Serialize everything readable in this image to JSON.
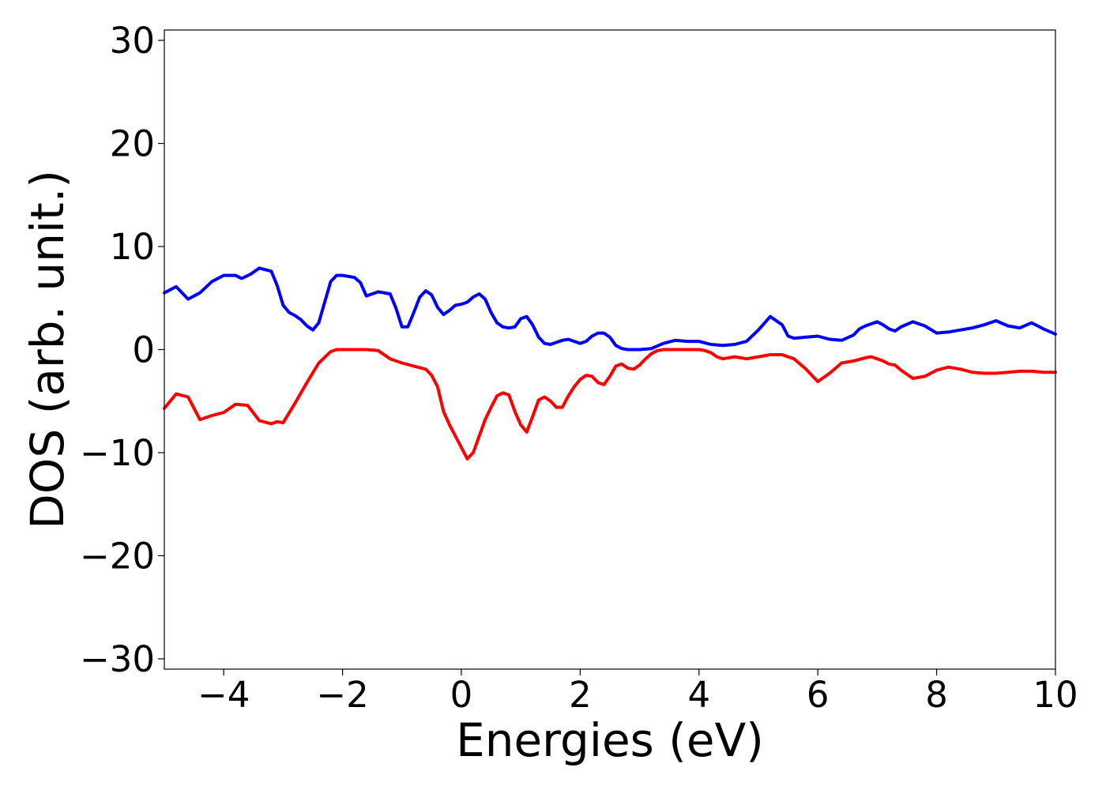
{
  "chart_data": {
    "type": "line",
    "title": "",
    "xlabel": "Energies (eV)",
    "ylabel": "DOS (arb. unit.)",
    "xlim": [
      -5,
      10
    ],
    "ylim": [
      -31,
      31
    ],
    "xticks": [
      -4,
      -2,
      0,
      2,
      4,
      6,
      8,
      10
    ],
    "yticks": [
      -30,
      -20,
      -10,
      0,
      10,
      20,
      30
    ],
    "xtick_labels": [
      "−4",
      "−2",
      "0",
      "2",
      "4",
      "6",
      "8",
      "10"
    ],
    "ytick_labels": [
      "−30",
      "−20",
      "−10",
      "0",
      "10",
      "20",
      "30"
    ],
    "grid": false,
    "legend": false,
    "series": [
      {
        "color": "#0000ff",
        "x": [
          -5.0,
          -4.8,
          -4.6,
          -4.4,
          -4.2,
          -4.0,
          -3.8,
          -3.7,
          -3.55,
          -3.4,
          -3.2,
          -3.1,
          -3.0,
          -2.9,
          -2.8,
          -2.7,
          -2.6,
          -2.5,
          -2.4,
          -2.3,
          -2.2,
          -2.1,
          -2.0,
          -1.9,
          -1.8,
          -1.7,
          -1.6,
          -1.4,
          -1.2,
          -1.1,
          -1.0,
          -0.9,
          -0.8,
          -0.7,
          -0.6,
          -0.5,
          -0.4,
          -0.3,
          -0.2,
          -0.1,
          0.0,
          0.1,
          0.2,
          0.3,
          0.4,
          0.5,
          0.6,
          0.7,
          0.8,
          0.9,
          1.0,
          1.1,
          1.2,
          1.3,
          1.4,
          1.5,
          1.6,
          1.7,
          1.8,
          1.9,
          2.0,
          2.1,
          2.2,
          2.3,
          2.4,
          2.5,
          2.6,
          2.7,
          2.8,
          3.0,
          3.2,
          3.4,
          3.6,
          3.8,
          4.0,
          4.2,
          4.4,
          4.6,
          4.8,
          5.0,
          5.2,
          5.4,
          5.5,
          5.6,
          5.8,
          6.0,
          6.2,
          6.4,
          6.6,
          6.7,
          6.8,
          6.9,
          7.0,
          7.1,
          7.2,
          7.3,
          7.4,
          7.6,
          7.8,
          8.0,
          8.2,
          8.4,
          8.6,
          8.8,
          9.0,
          9.2,
          9.4,
          9.6,
          9.8,
          10.0
        ],
        "y": [
          5.5,
          6.1,
          4.9,
          5.5,
          6.6,
          7.2,
          7.2,
          6.9,
          7.3,
          7.9,
          7.6,
          6.2,
          4.3,
          3.6,
          3.3,
          2.9,
          2.3,
          1.9,
          2.6,
          4.6,
          6.6,
          7.2,
          7.2,
          7.1,
          7.0,
          6.5,
          5.2,
          5.6,
          5.4,
          4.0,
          2.2,
          2.2,
          3.6,
          5.1,
          5.7,
          5.3,
          4.1,
          3.4,
          3.8,
          4.3,
          4.4,
          4.6,
          5.1,
          5.4,
          4.9,
          3.6,
          2.6,
          2.2,
          2.1,
          2.2,
          3.0,
          3.2,
          2.4,
          1.2,
          0.6,
          0.5,
          0.7,
          0.9,
          1.0,
          0.8,
          0.6,
          0.8,
          1.3,
          1.6,
          1.6,
          1.2,
          0.4,
          0.1,
          0.0,
          0.0,
          0.1,
          0.6,
          0.9,
          0.8,
          0.8,
          0.5,
          0.4,
          0.5,
          0.8,
          1.9,
          3.2,
          2.4,
          1.3,
          1.1,
          1.2,
          1.3,
          1.0,
          0.9,
          1.4,
          2.0,
          2.3,
          2.5,
          2.7,
          2.4,
          2.0,
          1.8,
          2.2,
          2.7,
          2.3,
          1.6,
          1.7,
          1.9,
          2.1,
          2.4,
          2.8,
          2.3,
          2.1,
          2.6,
          2.0,
          1.5
        ]
      },
      {
        "color": "#ff0000",
        "x": [
          -5.0,
          -4.8,
          -4.6,
          -4.4,
          -4.2,
          -4.0,
          -3.8,
          -3.6,
          -3.4,
          -3.2,
          -3.1,
          -3.0,
          -2.8,
          -2.6,
          -2.4,
          -2.2,
          -2.1,
          -2.0,
          -1.9,
          -1.8,
          -1.6,
          -1.4,
          -1.2,
          -1.0,
          -0.8,
          -0.6,
          -0.5,
          -0.4,
          -0.3,
          -0.2,
          -0.1,
          0.0,
          0.1,
          0.2,
          0.3,
          0.4,
          0.5,
          0.6,
          0.7,
          0.8,
          0.9,
          1.0,
          1.1,
          1.2,
          1.3,
          1.4,
          1.5,
          1.6,
          1.7,
          1.8,
          1.9,
          2.0,
          2.1,
          2.2,
          2.3,
          2.4,
          2.5,
          2.6,
          2.7,
          2.8,
          2.9,
          3.0,
          3.1,
          3.2,
          3.3,
          3.4,
          3.5,
          3.6,
          3.7,
          3.8,
          3.9,
          4.0,
          4.1,
          4.2,
          4.3,
          4.4,
          4.6,
          4.8,
          5.0,
          5.2,
          5.4,
          5.6,
          5.8,
          6.0,
          6.2,
          6.4,
          6.6,
          6.8,
          6.9,
          7.0,
          7.1,
          7.2,
          7.3,
          7.4,
          7.6,
          7.8,
          8.0,
          8.2,
          8.4,
          8.6,
          8.8,
          9.0,
          9.2,
          9.4,
          9.6,
          9.8,
          10.0
        ],
        "y": [
          -5.7,
          -4.3,
          -4.6,
          -6.8,
          -6.4,
          -6.1,
          -5.3,
          -5.4,
          -6.9,
          -7.2,
          -7.0,
          -7.1,
          -5.2,
          -3.2,
          -1.3,
          -0.2,
          0.0,
          0.0,
          0.0,
          0.0,
          0.0,
          -0.1,
          -0.9,
          -1.3,
          -1.6,
          -1.9,
          -2.5,
          -3.6,
          -6.0,
          -7.3,
          -8.4,
          -9.5,
          -10.6,
          -10.0,
          -8.4,
          -6.8,
          -5.6,
          -4.5,
          -4.2,
          -4.4,
          -6.0,
          -7.3,
          -8.0,
          -6.5,
          -4.9,
          -4.6,
          -5.0,
          -5.6,
          -5.6,
          -4.5,
          -3.6,
          -2.9,
          -2.5,
          -2.6,
          -3.2,
          -3.4,
          -2.6,
          -1.6,
          -1.4,
          -1.8,
          -1.9,
          -1.5,
          -0.9,
          -0.4,
          -0.1,
          0.0,
          0.0,
          0.0,
          0.0,
          0.0,
          0.0,
          0.0,
          -0.1,
          -0.3,
          -0.7,
          -0.9,
          -0.7,
          -0.9,
          -0.7,
          -0.5,
          -0.5,
          -0.9,
          -1.9,
          -3.1,
          -2.3,
          -1.3,
          -1.1,
          -0.8,
          -0.7,
          -0.9,
          -1.1,
          -1.4,
          -1.5,
          -2.0,
          -2.8,
          -2.6,
          -2.0,
          -1.7,
          -1.9,
          -2.2,
          -2.3,
          -2.3,
          -2.2,
          -2.1,
          -2.1,
          -2.2,
          -2.2
        ]
      }
    ]
  }
}
